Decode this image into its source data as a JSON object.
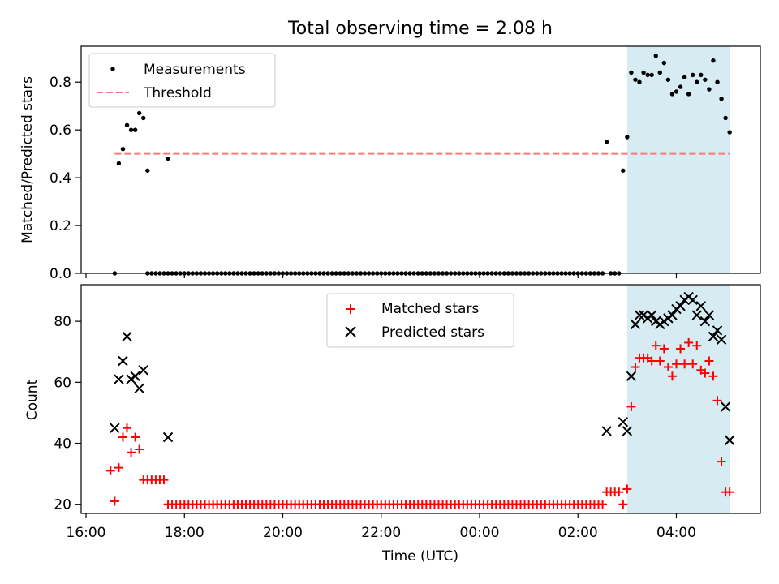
{
  "title": "Total observing time = 2.08 h",
  "colors": {
    "measurement": "#000000",
    "threshold": "#ff7777",
    "matched": "#ff0000",
    "predicted": "#000000",
    "shade": "#add8e6"
  },
  "chart_data": [
    {
      "type": "scatter",
      "ylabel": "Matched/Predicted stars",
      "ylim": [
        0,
        0.95
      ],
      "yticks": [
        0.0,
        0.2,
        0.4,
        0.6,
        0.8
      ],
      "ytick_labels": [
        "0.0",
        "0.2",
        "0.4",
        "0.6",
        "0.8"
      ],
      "grid": false,
      "legend": "top-left",
      "shaded_interval": [
        "03:00",
        "05:05"
      ],
      "series": [
        {
          "name": "Measurements",
          "marker": "dot",
          "x": [
            "16:35",
            "16:40",
            "16:45",
            "16:50",
            "16:55",
            "17:00",
            "17:05",
            "17:10",
            "17:15",
            "17:40",
            "02:35",
            "02:55",
            "03:00",
            "03:05",
            "03:10",
            "03:15",
            "03:20",
            "03:25",
            "03:30",
            "03:35",
            "03:40",
            "03:45",
            "03:50",
            "03:55",
            "04:00",
            "04:05",
            "04:10",
            "04:15",
            "04:20",
            "04:25",
            "04:30",
            "04:35",
            "04:40",
            "04:45",
            "04:50",
            "04:55",
            "05:00",
            "05:05"
          ],
          "y": [
            0.0,
            0.46,
            0.52,
            0.62,
            0.6,
            0.6,
            0.67,
            0.65,
            0.43,
            0.48,
            0.55,
            0.43,
            0.57,
            0.84,
            0.81,
            0.8,
            0.84,
            0.83,
            0.83,
            0.91,
            0.84,
            0.88,
            0.81,
            0.75,
            0.76,
            0.78,
            0.82,
            0.75,
            0.83,
            0.8,
            0.83,
            0.81,
            0.77,
            0.89,
            0.8,
            0.73,
            0.65,
            0.59
          ]
        },
        {
          "name": "Threshold",
          "style": "dashed",
          "x": [
            "16:35",
            "05:05"
          ],
          "y": [
            0.5,
            0.5
          ]
        }
      ],
      "zero_series": {
        "x_start": "17:15",
        "x_end": "02:30",
        "step_minutes": 5,
        "y": 0.0,
        "extra_x": [
          "02:40",
          "02:45",
          "02:50"
        ]
      }
    },
    {
      "type": "scatter",
      "xlabel": "Time (UTC)",
      "ylabel": "Count",
      "ylim": [
        17,
        92
      ],
      "yticks": [
        20,
        40,
        60,
        80
      ],
      "x_tick_labels": [
        "16:00",
        "18:00",
        "20:00",
        "22:00",
        "00:00",
        "02:00",
        "04:00"
      ],
      "grid": false,
      "legend": "top-center",
      "shaded_interval": [
        "03:00",
        "05:05"
      ],
      "series": [
        {
          "name": "Matched stars",
          "marker": "plus",
          "x": [
            "16:30",
            "16:35",
            "16:40",
            "16:45",
            "16:50",
            "16:55",
            "17:00",
            "17:05",
            "17:10",
            "17:15",
            "17:20",
            "17:25",
            "17:30",
            "17:35",
            "17:40",
            "02:35",
            "02:40",
            "02:45",
            "02:50",
            "02:55",
            "03:00",
            "03:05",
            "03:10",
            "03:15",
            "03:20",
            "03:25",
            "03:30",
            "03:35",
            "03:40",
            "03:45",
            "03:50",
            "03:55",
            "04:00",
            "04:05",
            "04:10",
            "04:15",
            "04:20",
            "04:25",
            "04:30",
            "04:35",
            "04:40",
            "04:45",
            "04:50",
            "04:55",
            "05:00",
            "05:05"
          ],
          "y": [
            31,
            21,
            32,
            42,
            45,
            37,
            42,
            38,
            28,
            28,
            28,
            28,
            28,
            28,
            20,
            24,
            24,
            24,
            24,
            20,
            25,
            52,
            65,
            68,
            68,
            68,
            67,
            72,
            67,
            71,
            65,
            62,
            66,
            71,
            66,
            73,
            66,
            72,
            64,
            63,
            67,
            62,
            54,
            34,
            24,
            24
          ]
        },
        {
          "name": "Predicted stars",
          "marker": "x",
          "x": [
            "16:35",
            "16:40",
            "16:45",
            "16:50",
            "16:55",
            "17:00",
            "17:05",
            "17:10",
            "17:40",
            "02:35",
            "02:55",
            "03:00",
            "03:05",
            "03:10",
            "03:15",
            "03:20",
            "03:25",
            "03:30",
            "03:35",
            "03:40",
            "03:45",
            "03:50",
            "03:55",
            "04:00",
            "04:05",
            "04:10",
            "04:15",
            "04:20",
            "04:25",
            "04:30",
            "04:35",
            "04:40",
            "04:45",
            "04:50",
            "04:55",
            "05:00",
            "05:05"
          ],
          "y": [
            45,
            61,
            67,
            75,
            61,
            62,
            58,
            64,
            42,
            44,
            47,
            44,
            62,
            79,
            82,
            82,
            81,
            82,
            80,
            79,
            80,
            81,
            82,
            84,
            85,
            87,
            88,
            87,
            82,
            85,
            80,
            82,
            75,
            77,
            74,
            52,
            41
          ]
        }
      ],
      "zero_series": {
        "x_start": "17:45",
        "x_end": "02:30",
        "step_minutes": 5,
        "y": 20,
        "marker": "plus"
      }
    }
  ]
}
